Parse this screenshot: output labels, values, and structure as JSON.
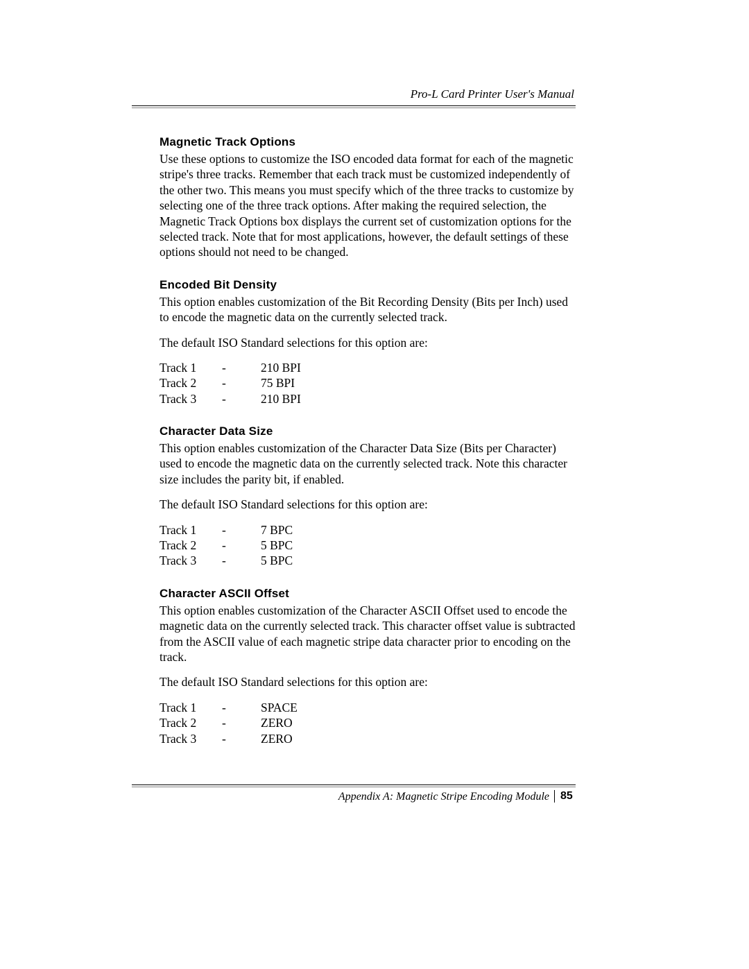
{
  "header": {
    "running_head": "Pro-L Card Printer User's Manual"
  },
  "sections": {
    "magnetic_track_options": {
      "heading": "Magnetic Track Options",
      "body": "Use these options to customize the ISO encoded data format for each of the magnetic stripe's three tracks. Remember that each track must be customized independently of the other two. This means you must specify which of the three tracks to customize by selecting one of the three track options. After making the required selection, the Magnetic Track Options box displays the current set of customization options for the selected track. Note that for most applications, however, the default settings of these options should not need to be changed."
    },
    "encoded_bit_density": {
      "heading": "Encoded Bit Density",
      "body": "This option enables customization of the Bit Recording Density (Bits per Inch) used to encode the magnetic data on the currently selected track.",
      "defaults_intro": "The default ISO Standard selections for this option are:",
      "table": [
        {
          "label": "Track 1",
          "sep": "-",
          "value": "210 BPI"
        },
        {
          "label": "Track 2",
          "sep": "-",
          "value": "75 BPI"
        },
        {
          "label": "Track 3",
          "sep": "-",
          "value": "210 BPI"
        }
      ]
    },
    "character_data_size": {
      "heading": "Character Data Size",
      "body": "This option enables customization of the Character Data Size (Bits per Character) used to encode the magnetic data on the currently selected track. Note this character size includes the parity bit, if enabled.",
      "defaults_intro": "The default ISO Standard selections for this option are:",
      "table": [
        {
          "label": "Track 1",
          "sep": "-",
          "value": "7 BPC"
        },
        {
          "label": "Track 2",
          "sep": "-",
          "value": "5 BPC"
        },
        {
          "label": "Track 3",
          "sep": "-",
          "value": "5 BPC"
        }
      ]
    },
    "character_ascii_offset": {
      "heading": "Character ASCII Offset",
      "body": "This option enables customization of the Character ASCII Offset used to encode the magnetic data on the currently selected track. This character offset value is subtracted from the ASCII value of each magnetic stripe data character prior to encoding on the track.",
      "defaults_intro": "The default ISO Standard selections for this option are:",
      "table": [
        {
          "label": "Track 1",
          "sep": "-",
          "value": "SPACE"
        },
        {
          "label": "Track 2",
          "sep": "-",
          "value": "ZERO"
        },
        {
          "label": "Track 3",
          "sep": "-",
          "value": "ZERO"
        }
      ]
    }
  },
  "footer": {
    "appendix_text": "Appendix A:  Magnetic Stripe Encoding Module",
    "page_number": "85"
  }
}
